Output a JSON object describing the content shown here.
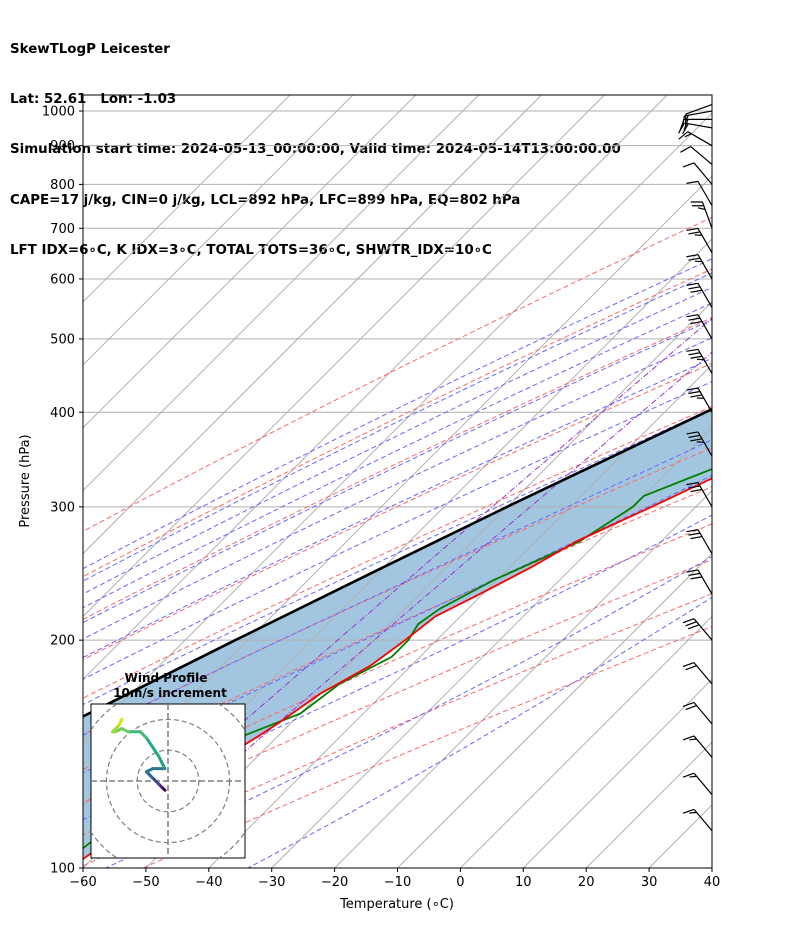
{
  "header": {
    "line1": "SkewTLogP Leicester",
    "line2": "Lat: 52.61   Lon: -1.03",
    "line3": "Simulation start time: 2024-05-13_00:00:00, Valid time: 2024-05-14T13:00:00.00",
    "line4": "CAPE=17 j/kg, CIN=0 j/kg, LCL=892 hPa, LFC=899 hPa, EQ=802 hPa",
    "line5": "LFT IDX=6∘C, K IDX=3∘C, TOTAL TOTS=36∘C, SHWTR_IDX=10∘C"
  },
  "colors": {
    "temperature": "#ff0000",
    "dewpoint": "#008000",
    "parcel": "#000000",
    "cape_fill": "#a3c6e0",
    "dry_adiabat": "#ff6666",
    "moist_adiabat": "#6666ff",
    "mixing_ratio": "#9933cc",
    "isotherm": "#b0b0b0"
  },
  "chart_data": {
    "type": "skew-t log-p",
    "xlabel": "Temperature (∘C)",
    "ylabel": "Pressure (hPa)",
    "xlim": [
      -60,
      40
    ],
    "ylim": [
      1050,
      100
    ],
    "x_ticks": [
      "−60",
      "−50",
      "−40",
      "−30",
      "−20",
      "−10",
      "0",
      "10",
      "20",
      "30",
      "40"
    ],
    "y_ticks": [
      "100",
      "200",
      "300",
      "400",
      "500",
      "600",
      "700",
      "800",
      "900",
      "1000"
    ],
    "grid": true,
    "y_scale": "log",
    "skew_degrees": 45,
    "temperature": [
      {
        "p": 985,
        "t": 17.5
      },
      {
        "p": 950,
        "t": 15.0
      },
      {
        "p": 900,
        "t": 12.5
      },
      {
        "p": 860,
        "t": 11.3
      },
      {
        "p": 800,
        "t": 11.8
      },
      {
        "p": 750,
        "t": 12.0
      },
      {
        "p": 700,
        "t": 11.0
      },
      {
        "p": 660,
        "t": 9.0
      },
      {
        "p": 600,
        "t": 6.0
      },
      {
        "p": 550,
        "t": 3.5
      },
      {
        "p": 500,
        "t": -0.5
      },
      {
        "p": 450,
        "t": -5.5
      },
      {
        "p": 400,
        "t": -11.0
      },
      {
        "p": 350,
        "t": -18.0
      },
      {
        "p": 300,
        "t": -27.0
      },
      {
        "p": 270,
        "t": -33.5
      },
      {
        "p": 250,
        "t": -36.5
      },
      {
        "p": 230,
        "t": -40.5
      },
      {
        "p": 215,
        "t": -44.0
      },
      {
        "p": 200,
        "t": -45.0
      },
      {
        "p": 185,
        "t": -46.5
      },
      {
        "p": 170,
        "t": -50.0
      },
      {
        "p": 155,
        "t": -52.0
      },
      {
        "p": 145,
        "t": -54.0
      },
      {
        "p": 135,
        "t": -54.0
      },
      {
        "p": 125,
        "t": -56.0
      },
      {
        "p": 115,
        "t": -59.0
      },
      {
        "p": 100,
        "t": -62.0
      }
    ],
    "dewpoint": [
      {
        "p": 985,
        "t": 12.0
      },
      {
        "p": 950,
        "t": 12.0
      },
      {
        "p": 900,
        "t": 11.0
      },
      {
        "p": 860,
        "t": 7.5
      },
      {
        "p": 830,
        "t": 1.0
      },
      {
        "p": 800,
        "t": -6.0
      },
      {
        "p": 760,
        "t": -10.0
      },
      {
        "p": 720,
        "t": -12.0
      },
      {
        "p": 700,
        "t": -12.0
      },
      {
        "p": 660,
        "t": -0.5
      },
      {
        "p": 630,
        "t": 6.0
      },
      {
        "p": 600,
        "t": 5.0
      },
      {
        "p": 560,
        "t": 1.0
      },
      {
        "p": 520,
        "t": -2.0
      },
      {
        "p": 490,
        "t": -3.5
      },
      {
        "p": 470,
        "t": -4.0
      },
      {
        "p": 450,
        "t": -6.0
      },
      {
        "p": 400,
        "t": -12.0
      },
      {
        "p": 360,
        "t": -18.0
      },
      {
        "p": 330,
        "t": -25.0
      },
      {
        "p": 310,
        "t": -30.0
      },
      {
        "p": 300,
        "t": -30.0
      },
      {
        "p": 270,
        "t": -33.0
      },
      {
        "p": 240,
        "t": -40.5
      },
      {
        "p": 220,
        "t": -44.5
      },
      {
        "p": 210,
        "t": -45.5
      },
      {
        "p": 200,
        "t": -44.5
      },
      {
        "p": 190,
        "t": -44.5
      },
      {
        "p": 175,
        "t": -48.5
      },
      {
        "p": 160,
        "t": -50.0
      },
      {
        "p": 145,
        "t": -58.0
      },
      {
        "p": 130,
        "t": -61.0
      },
      {
        "p": 115,
        "t": -62.0
      },
      {
        "p": 100,
        "t": -64.0
      }
    ],
    "parcel": [
      {
        "p": 985,
        "t": 17.5
      },
      {
        "p": 950,
        "t": 14.2
      },
      {
        "p": 900,
        "t": 10.0
      },
      {
        "p": 850,
        "t": 7.0
      },
      {
        "p": 800,
        "t": 4.0
      },
      {
        "p": 700,
        "t": -2.5
      },
      {
        "p": 600,
        "t": -10.5
      },
      {
        "p": 500,
        "t": -20.5
      },
      {
        "p": 400,
        "t": -33.5
      },
      {
        "p": 300,
        "t": -50.0
      },
      {
        "p": 250,
        "t": -60.0
      },
      {
        "p": 200,
        "t": -72.0
      },
      {
        "p": 150,
        "t": -87.0
      },
      {
        "p": 120,
        "t": -98.0
      },
      {
        "p": 100,
        "t": -106.0
      }
    ],
    "dry_adiabats_k": [
      230,
      250,
      270,
      290,
      310,
      330,
      350,
      370,
      390,
      410,
      430
    ],
    "moist_adiabats_c": [
      -25,
      -20,
      -15,
      -10,
      -5,
      0,
      5,
      10,
      15,
      20,
      25,
      30,
      35,
      40
    ],
    "mixing_ratios_gkg": [
      0.1,
      0.2
    ],
    "wind_barbs": [
      {
        "p": 1020,
        "speed_kt": 10,
        "dir": 250
      },
      {
        "p": 1000,
        "speed_kt": 15,
        "dir": 260
      },
      {
        "p": 975,
        "speed_kt": 20,
        "dir": 270
      },
      {
        "p": 950,
        "speed_kt": 20,
        "dir": 280
      },
      {
        "p": 900,
        "speed_kt": 15,
        "dir": 300
      },
      {
        "p": 850,
        "speed_kt": 10,
        "dir": 310
      },
      {
        "p": 800,
        "speed_kt": 10,
        "dir": 320
      },
      {
        "p": 750,
        "speed_kt": 10,
        "dir": 330
      },
      {
        "p": 700,
        "speed_kt": 25,
        "dir": 340
      },
      {
        "p": 650,
        "speed_kt": 25,
        "dir": 330
      },
      {
        "p": 600,
        "speed_kt": 25,
        "dir": 330
      },
      {
        "p": 550,
        "speed_kt": 30,
        "dir": 330
      },
      {
        "p": 500,
        "speed_kt": 30,
        "dir": 330
      },
      {
        "p": 450,
        "speed_kt": 35,
        "dir": 330
      },
      {
        "p": 400,
        "speed_kt": 35,
        "dir": 330
      },
      {
        "p": 350,
        "speed_kt": 35,
        "dir": 330
      },
      {
        "p": 300,
        "speed_kt": 30,
        "dir": 330
      },
      {
        "p": 260,
        "speed_kt": 30,
        "dir": 330
      },
      {
        "p": 230,
        "speed_kt": 30,
        "dir": 330
      },
      {
        "p": 200,
        "speed_kt": 30,
        "dir": 320
      },
      {
        "p": 175,
        "speed_kt": 20,
        "dir": 320
      },
      {
        "p": 155,
        "speed_kt": 20,
        "dir": 320
      },
      {
        "p": 140,
        "speed_kt": 15,
        "dir": 320
      },
      {
        "p": 125,
        "speed_kt": 15,
        "dir": 320
      },
      {
        "p": 112,
        "speed_kt": 15,
        "dir": 320
      }
    ],
    "hodograph": {
      "title": "Wind Profile",
      "subtitle": "10m/s increment",
      "rings_ms": [
        10,
        20,
        30
      ],
      "range_ms": [
        -25,
        25
      ],
      "points": [
        {
          "u": -1,
          "v": -3
        },
        {
          "u": -2,
          "v": -2
        },
        {
          "u": -3,
          "v": -1
        },
        {
          "u": -4,
          "v": 0
        },
        {
          "u": -5,
          "v": 1
        },
        {
          "u": -6,
          "v": 2
        },
        {
          "u": -7,
          "v": 3
        },
        {
          "u": -5,
          "v": 4
        },
        {
          "u": -1,
          "v": 4
        },
        {
          "u": -2,
          "v": 6
        },
        {
          "u": -3,
          "v": 8
        },
        {
          "u": -5,
          "v": 11
        },
        {
          "u": -7,
          "v": 14
        },
        {
          "u": -9,
          "v": 16
        },
        {
          "u": -13,
          "v": 16
        },
        {
          "u": -15,
          "v": 17
        },
        {
          "u": -17,
          "v": 16
        },
        {
          "u": -18,
          "v": 16
        },
        {
          "u": -16,
          "v": 18
        },
        {
          "u": -15,
          "v": 20
        }
      ]
    }
  }
}
